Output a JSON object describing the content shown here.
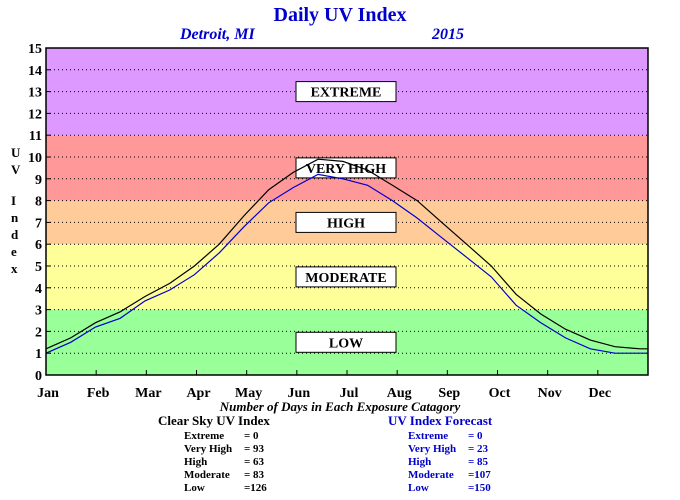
{
  "chart_data": {
    "type": "line",
    "title": "Daily UV Index",
    "location": "Detroit, MI",
    "year": "2015",
    "ylabel": "UV Index",
    "ylabel_letters": [
      "U",
      "V",
      "I",
      "n",
      "d",
      "e",
      "x"
    ],
    "xlabel": "Number of Days in Each Exposure Catagory",
    "ylim": [
      0,
      15
    ],
    "xlim": [
      0,
      365
    ],
    "yticks": [
      "0",
      "1",
      "2",
      "3",
      "4",
      "5",
      "6",
      "7",
      "8",
      "9",
      "10",
      "11",
      "12",
      "13",
      "14",
      "15"
    ],
    "months": [
      "Jan",
      "Feb",
      "Mar",
      "Apr",
      "May",
      "Jun",
      "Jul",
      "Aug",
      "Sep",
      "Oct",
      "Nov",
      "Dec"
    ],
    "bands": [
      {
        "label": "LOW",
        "from": 0,
        "to": 3,
        "color": "#99ff99"
      },
      {
        "label": "MODERATE",
        "from": 3,
        "to": 6,
        "color": "#ffff99"
      },
      {
        "label": "HIGH",
        "from": 6,
        "to": 8,
        "color": "#ffcc99"
      },
      {
        "label": "VERY HIGH",
        "from": 8,
        "to": 11,
        "color": "#ff9999"
      },
      {
        "label": "EXTREME",
        "from": 11,
        "to": 15,
        "color": "#dd99ff"
      }
    ],
    "series": [
      {
        "name": "Clear Sky UV Index",
        "color": "#000000",
        "x": [
          0,
          15,
          30,
          45,
          60,
          75,
          90,
          105,
          120,
          135,
          150,
          165,
          180,
          195,
          210,
          225,
          240,
          255,
          270,
          285,
          300,
          315,
          330,
          345,
          360,
          365
        ],
        "y": [
          1.2,
          1.7,
          2.4,
          2.9,
          3.6,
          4.2,
          5.0,
          6.0,
          7.3,
          8.5,
          9.3,
          9.9,
          9.8,
          9.4,
          8.7,
          8.0,
          7.0,
          6.0,
          5.0,
          3.7,
          2.8,
          2.1,
          1.6,
          1.3,
          1.2,
          1.2
        ]
      },
      {
        "name": "UV Index Forecast",
        "color": "#0000cc",
        "x": [
          0,
          15,
          30,
          45,
          60,
          75,
          90,
          105,
          120,
          135,
          150,
          165,
          180,
          195,
          210,
          225,
          240,
          255,
          270,
          285,
          300,
          315,
          330,
          345,
          360,
          365
        ],
        "y": [
          1.0,
          1.5,
          2.2,
          2.6,
          3.4,
          3.9,
          4.6,
          5.6,
          6.8,
          7.9,
          8.6,
          9.2,
          9.0,
          8.7,
          8.0,
          7.2,
          6.3,
          5.4,
          4.5,
          3.2,
          2.4,
          1.7,
          1.2,
          1.0,
          1.0,
          1.0
        ]
      }
    ]
  },
  "stats_clear": {
    "title": "Clear Sky UV Index",
    "rows": [
      {
        "label": "Extreme",
        "value": "=    0"
      },
      {
        "label": "Very High",
        "value": "=  93"
      },
      {
        "label": "High",
        "value": "=  63"
      },
      {
        "label": "Moderate",
        "value": "=  83"
      },
      {
        "label": "Low",
        "value": "=126"
      }
    ]
  },
  "stats_forecast": {
    "title": "UV Index Forecast",
    "rows": [
      {
        "label": "Extreme",
        "value": "=    0"
      },
      {
        "label": "Very High",
        "value": "=  23"
      },
      {
        "label": "High",
        "value": "=  85"
      },
      {
        "label": "Moderate",
        "value": "=107"
      },
      {
        "label": "Low",
        "value": "=150"
      }
    ]
  }
}
